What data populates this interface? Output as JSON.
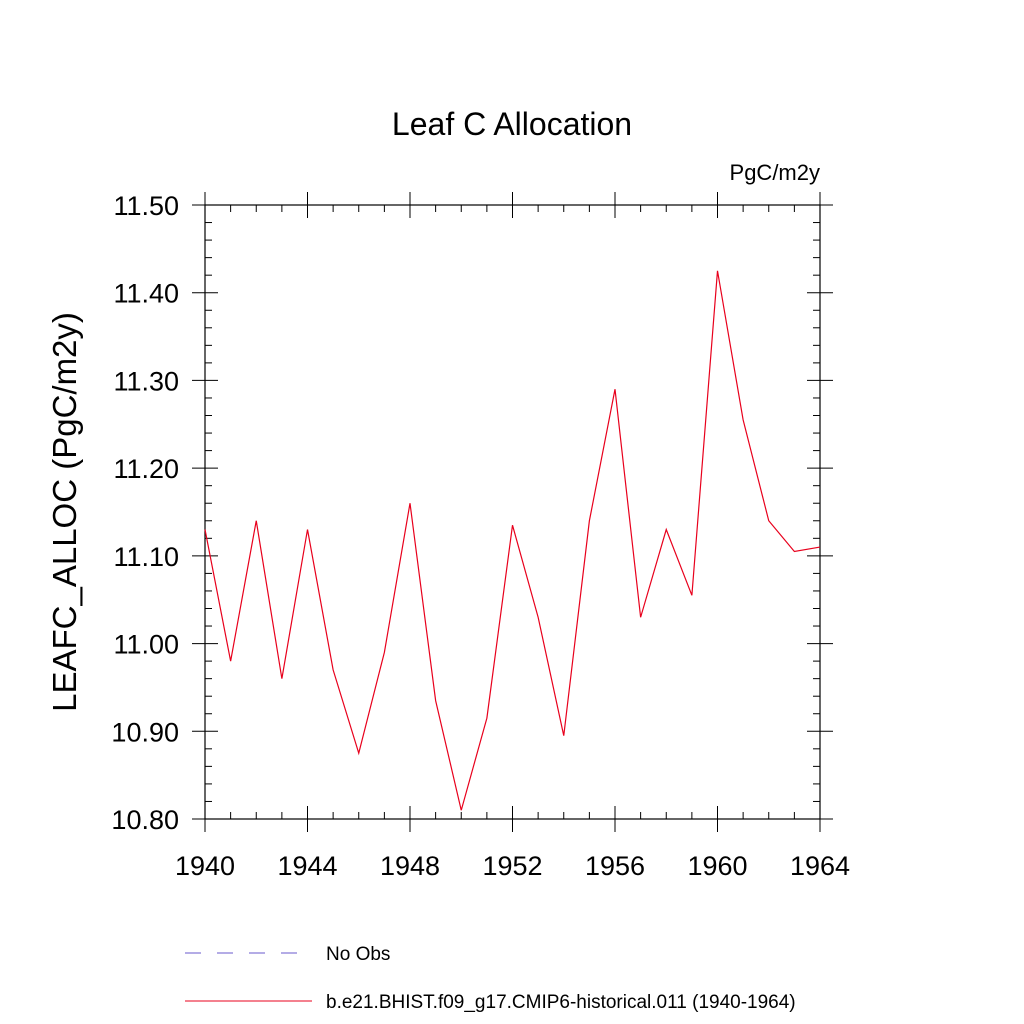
{
  "chart_data": {
    "type": "line",
    "title": "Leaf C Allocation",
    "units_label": "PgC/m2y",
    "ylabel": "LEAFC_ALLOC  (PgC/m2y)",
    "xlim": [
      1940,
      1964
    ],
    "ylim": [
      10.8,
      11.5
    ],
    "x_ticks": [
      1940,
      1944,
      1948,
      1952,
      1956,
      1960,
      1964
    ],
    "x_tick_labels": [
      "1940",
      "1944",
      "1948",
      "1952",
      "1956",
      "1960",
      "1964"
    ],
    "y_ticks": [
      10.8,
      10.9,
      11.0,
      11.1,
      11.2,
      11.3,
      11.4,
      11.5
    ],
    "y_tick_labels": [
      "10.80",
      "10.90",
      "11.00",
      "11.10",
      "11.20",
      "11.30",
      "11.40",
      "11.50"
    ],
    "grid": false,
    "legend_position": "bottom",
    "series": [
      {
        "name": "b.e21.BHIST.f09_g17.CMIP6-historical.011 (1940-1964)",
        "color": "#e8001c",
        "style": "solid",
        "x": [
          1940,
          1941,
          1942,
          1943,
          1944,
          1945,
          1946,
          1947,
          1948,
          1949,
          1950,
          1951,
          1952,
          1953,
          1954,
          1955,
          1956,
          1957,
          1958,
          1959,
          1960,
          1961,
          1962,
          1963,
          1964
        ],
        "values": [
          11.13,
          10.98,
          11.14,
          10.96,
          11.13,
          10.97,
          10.875,
          10.99,
          11.16,
          10.935,
          10.81,
          10.915,
          11.135,
          11.03,
          10.895,
          11.14,
          11.29,
          11.03,
          11.13,
          11.055,
          11.425,
          11.255,
          11.14,
          11.105,
          11.11
        ]
      }
    ],
    "legend": [
      {
        "label": "No Obs",
        "color": "#6a5acd",
        "style": "dashed"
      },
      {
        "label": "b.e21.BHIST.f09_g17.CMIP6-historical.011 (1940-1964)",
        "color": "#e8001c",
        "style": "solid"
      }
    ]
  }
}
